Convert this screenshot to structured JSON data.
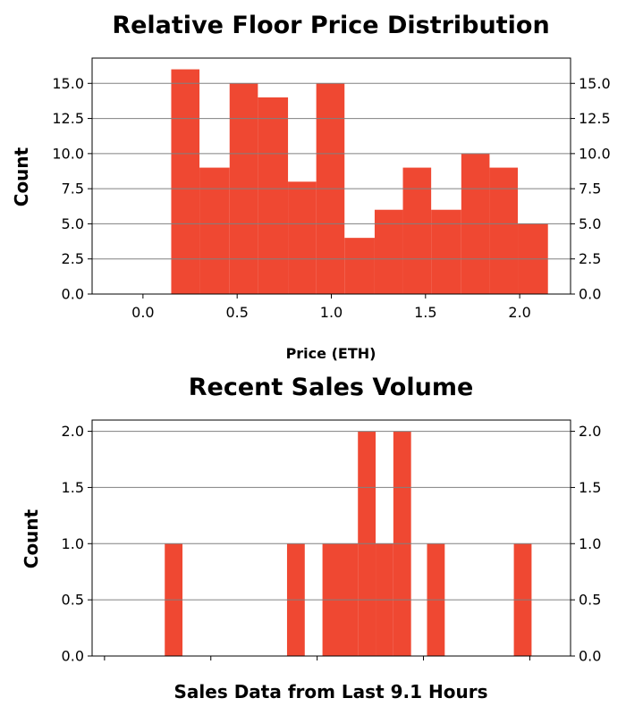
{
  "chart_data": [
    {
      "type": "bar",
      "title": "Relative Floor Price Distribution",
      "xlabel": "Price (ETH)",
      "ylabel": "Count",
      "color": "#ef4832",
      "grid": true,
      "grid_axis": "y",
      "xlim": [
        -0.27,
        2.27
      ],
      "ylim": [
        0,
        16.8
      ],
      "xticks": [
        "0.0",
        "0.5",
        "1.0",
        "1.5",
        "2.0"
      ],
      "xtick_values": [
        0.0,
        0.5,
        1.0,
        1.5,
        2.0
      ],
      "yticks": [
        "0.0",
        "2.5",
        "5.0",
        "7.5",
        "10.0",
        "12.5",
        "15.0"
      ],
      "ytick_values": [
        0.0,
        2.5,
        5.0,
        7.5,
        10.0,
        12.5,
        15.0
      ],
      "bins": [
        {
          "start": 0.15,
          "end": 0.3,
          "value": 16
        },
        {
          "start": 0.3,
          "end": 0.46,
          "value": 9
        },
        {
          "start": 0.46,
          "end": 0.61,
          "value": 15
        },
        {
          "start": 0.61,
          "end": 0.77,
          "value": 14
        },
        {
          "start": 0.77,
          "end": 0.92,
          "value": 8
        },
        {
          "start": 0.92,
          "end": 1.07,
          "value": 15
        },
        {
          "start": 1.07,
          "end": 1.23,
          "value": 4
        },
        {
          "start": 1.23,
          "end": 1.38,
          "value": 6
        },
        {
          "start": 1.38,
          "end": 1.53,
          "value": 9
        },
        {
          "start": 1.53,
          "end": 1.69,
          "value": 6
        },
        {
          "start": 1.69,
          "end": 1.84,
          "value": 10
        },
        {
          "start": 1.84,
          "end": 1.99,
          "value": 9
        },
        {
          "start": 1.99,
          "end": 2.15,
          "value": 5
        }
      ]
    },
    {
      "type": "bar",
      "title": "Recent Sales Volume",
      "xlabel": "Sales Data from Last 9.1 Hours",
      "ylabel": "Count",
      "color": "#ef4832",
      "grid": true,
      "grid_axis": "y",
      "xlim": [
        0,
        27
      ],
      "ylim": [
        0,
        2.1
      ],
      "xtick_values": [
        0.7,
        6.7,
        12.7,
        18.7,
        24.7
      ],
      "xticks": [
        "",
        "",
        "",
        "",
        ""
      ],
      "yticks": [
        "0.0",
        "0.5",
        "1.0",
        "1.5",
        "2.0"
      ],
      "ytick_values": [
        0.0,
        0.5,
        1.0,
        1.5,
        2.0
      ],
      "bins": [
        {
          "start": 4.1,
          "end": 5.1,
          "value": 1
        },
        {
          "start": 11.0,
          "end": 12.0,
          "value": 1
        },
        {
          "start": 13.0,
          "end": 15.0,
          "value": 1
        },
        {
          "start": 15.0,
          "end": 16.0,
          "value": 2
        },
        {
          "start": 16.0,
          "end": 17.0,
          "value": 1
        },
        {
          "start": 17.0,
          "end": 18.0,
          "value": 2
        },
        {
          "start": 18.9,
          "end": 19.9,
          "value": 1
        },
        {
          "start": 23.8,
          "end": 24.8,
          "value": 1
        }
      ]
    }
  ]
}
